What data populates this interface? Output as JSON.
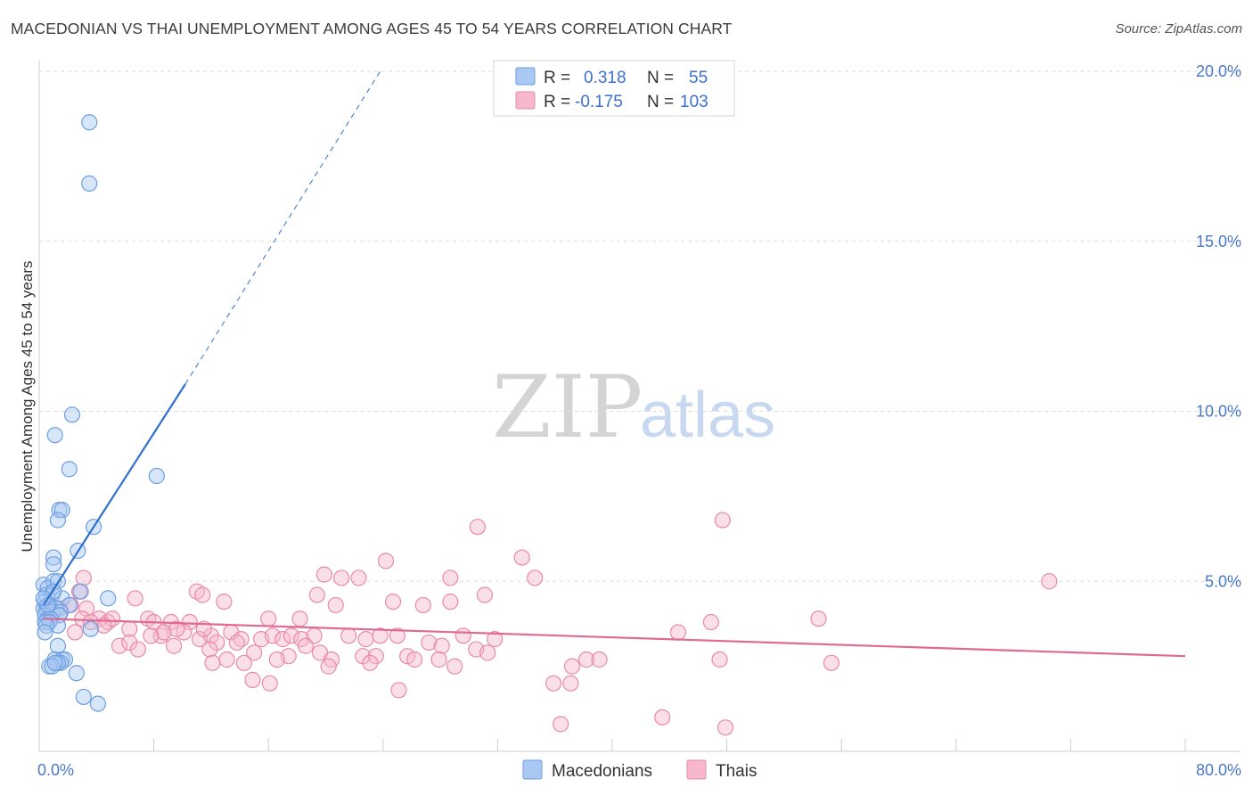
{
  "title": "MACEDONIAN VS THAI UNEMPLOYMENT AMONG AGES 45 TO 54 YEARS CORRELATION CHART",
  "source": "Source: ZipAtlas.com",
  "watermark": {
    "zip": "ZIP",
    "atlas": "atlas"
  },
  "colors": {
    "blue_fill": "#a9c8f2",
    "blue_stroke": "#6b9ee0",
    "blue_line": "#2f6fcf",
    "pink_fill": "#f7b8cc",
    "pink_stroke": "#e88aa8",
    "pink_line": "#e06a95",
    "grid": "#dddddd",
    "axis_label": "#4a78c8"
  },
  "legend": {
    "r_label": "R =",
    "n_label": "N =",
    "rows": [
      {
        "series": "Macedonians",
        "r": "0.318",
        "n": "55"
      },
      {
        "series": "Thais",
        "r": "-0.175",
        "n": "103"
      }
    ]
  },
  "bottom_legend": [
    "Macedonians",
    "Thais"
  ],
  "chart_data": {
    "type": "scatter",
    "title": "MACEDONIAN VS THAI UNEMPLOYMENT AMONG AGES 45 TO 54 YEARS CORRELATION CHART",
    "xlabel": "",
    "ylabel": "Unemployment Among Ages 45 to 54 years",
    "xlim": [
      0,
      80
    ],
    "ylim": [
      0,
      20
    ],
    "x_tick_labels": [
      "0.0%",
      "80.0%"
    ],
    "y_ticks": [
      5,
      10,
      15,
      20
    ],
    "y_tick_labels": [
      "5.0%",
      "10.0%",
      "15.0%",
      "20.0%"
    ],
    "grid": true,
    "series": [
      {
        "name": "Macedonians",
        "r": 0.318,
        "n": 55,
        "trend": {
          "x0": 0.3,
          "y0": 4.3,
          "x1": 10.2,
          "y1": 10.8,
          "dash_to_x": 23.8,
          "dash_to_y": 20.0
        },
        "points": [
          [
            3.5,
            18.5
          ],
          [
            3.5,
            16.7
          ],
          [
            2.3,
            9.9
          ],
          [
            1.1,
            9.3
          ],
          [
            2.1,
            8.3
          ],
          [
            8.2,
            8.1
          ],
          [
            1.4,
            7.1
          ],
          [
            1.6,
            7.1
          ],
          [
            1.3,
            6.8
          ],
          [
            3.8,
            6.6
          ],
          [
            2.7,
            5.9
          ],
          [
            1.0,
            5.7
          ],
          [
            1.0,
            5.5
          ],
          [
            0.3,
            4.9
          ],
          [
            0.6,
            4.8
          ],
          [
            1.0,
            5.0
          ],
          [
            1.3,
            5.0
          ],
          [
            2.9,
            4.7
          ],
          [
            4.8,
            4.5
          ],
          [
            0.5,
            4.6
          ],
          [
            0.9,
            4.6
          ],
          [
            1.6,
            4.5
          ],
          [
            2.1,
            4.3
          ],
          [
            0.4,
            4.4
          ],
          [
            0.7,
            4.3
          ],
          [
            1.2,
            4.2
          ],
          [
            0.3,
            4.2
          ],
          [
            0.5,
            4.2
          ],
          [
            0.9,
            4.1
          ],
          [
            1.5,
            4.1
          ],
          [
            0.4,
            4.0
          ],
          [
            1.4,
            4.0
          ],
          [
            0.6,
            3.9
          ],
          [
            0.8,
            3.9
          ],
          [
            0.4,
            3.8
          ],
          [
            0.7,
            3.8
          ],
          [
            1.3,
            3.7
          ],
          [
            0.5,
            3.7
          ],
          [
            0.4,
            3.5
          ],
          [
            3.6,
            3.6
          ],
          [
            1.3,
            3.1
          ],
          [
            1.1,
            2.7
          ],
          [
            1.6,
            2.7
          ],
          [
            1.8,
            2.7
          ],
          [
            1.5,
            2.6
          ],
          [
            1.3,
            2.6
          ],
          [
            0.7,
            2.5
          ],
          [
            0.9,
            2.5
          ],
          [
            2.6,
            2.3
          ],
          [
            3.1,
            1.6
          ],
          [
            4.1,
            1.4
          ],
          [
            0.6,
            4.3
          ],
          [
            1.0,
            4.7
          ],
          [
            0.3,
            4.5
          ],
          [
            1.1,
            2.6
          ]
        ]
      },
      {
        "name": "Thais",
        "r": -0.175,
        "n": 103,
        "trend": {
          "x0": 0.3,
          "y0": 3.9,
          "x1": 80.0,
          "y1": 2.8
        },
        "points": [
          [
            47.7,
            6.8
          ],
          [
            30.6,
            6.6
          ],
          [
            33.7,
            5.7
          ],
          [
            24.2,
            5.6
          ],
          [
            3.1,
            5.1
          ],
          [
            19.9,
            5.2
          ],
          [
            21.1,
            5.1
          ],
          [
            22.3,
            5.1
          ],
          [
            28.7,
            5.1
          ],
          [
            34.6,
            5.1
          ],
          [
            70.5,
            5.0
          ],
          [
            11.0,
            4.7
          ],
          [
            11.4,
            4.6
          ],
          [
            19.4,
            4.6
          ],
          [
            31.1,
            4.6
          ],
          [
            2.8,
            4.7
          ],
          [
            6.7,
            4.5
          ],
          [
            12.9,
            4.4
          ],
          [
            24.7,
            4.4
          ],
          [
            26.8,
            4.3
          ],
          [
            28.7,
            4.4
          ],
          [
            20.7,
            4.3
          ],
          [
            2.2,
            4.3
          ],
          [
            3.3,
            4.2
          ],
          [
            1.4,
            4.2
          ],
          [
            7.6,
            3.9
          ],
          [
            8.0,
            3.8
          ],
          [
            9.2,
            3.8
          ],
          [
            10.5,
            3.8
          ],
          [
            16.0,
            3.9
          ],
          [
            18.2,
            3.9
          ],
          [
            4.2,
            3.9
          ],
          [
            4.8,
            3.8
          ],
          [
            5.1,
            3.9
          ],
          [
            4.5,
            3.7
          ],
          [
            3.0,
            3.9
          ],
          [
            2.5,
            3.5
          ],
          [
            6.3,
            3.6
          ],
          [
            8.5,
            3.4
          ],
          [
            8.7,
            3.5
          ],
          [
            10.1,
            3.5
          ],
          [
            11.2,
            3.3
          ],
          [
            12.0,
            3.4
          ],
          [
            12.4,
            3.2
          ],
          [
            13.4,
            3.5
          ],
          [
            14.1,
            3.3
          ],
          [
            15.5,
            3.3
          ],
          [
            16.3,
            3.4
          ],
          [
            17.0,
            3.3
          ],
          [
            17.6,
            3.4
          ],
          [
            18.3,
            3.3
          ],
          [
            19.2,
            3.4
          ],
          [
            21.6,
            3.4
          ],
          [
            22.8,
            3.3
          ],
          [
            23.8,
            3.4
          ],
          [
            25.0,
            3.4
          ],
          [
            27.2,
            3.2
          ],
          [
            29.6,
            3.4
          ],
          [
            31.8,
            3.3
          ],
          [
            5.6,
            3.1
          ],
          [
            9.4,
            3.1
          ],
          [
            11.9,
            3.0
          ],
          [
            13.8,
            3.2
          ],
          [
            15.0,
            2.9
          ],
          [
            17.4,
            2.8
          ],
          [
            19.6,
            2.9
          ],
          [
            20.4,
            2.7
          ],
          [
            22.6,
            2.8
          ],
          [
            23.5,
            2.8
          ],
          [
            25.7,
            2.8
          ],
          [
            28.1,
            3.1
          ],
          [
            30.5,
            3.0
          ],
          [
            31.3,
            2.9
          ],
          [
            12.1,
            2.6
          ],
          [
            13.1,
            2.7
          ],
          [
            14.3,
            2.6
          ],
          [
            16.6,
            2.7
          ],
          [
            20.2,
            2.5
          ],
          [
            23.1,
            2.6
          ],
          [
            26.2,
            2.7
          ],
          [
            27.9,
            2.7
          ],
          [
            29.0,
            2.5
          ],
          [
            37.2,
            2.5
          ],
          [
            38.2,
            2.7
          ],
          [
            39.1,
            2.7
          ],
          [
            6.3,
            3.2
          ],
          [
            7.8,
            3.4
          ],
          [
            9.6,
            3.6
          ],
          [
            11.5,
            3.6
          ],
          [
            35.9,
            2.0
          ],
          [
            37.1,
            2.0
          ],
          [
            14.9,
            2.1
          ],
          [
            16.1,
            2.0
          ],
          [
            25.1,
            1.8
          ],
          [
            36.4,
            0.8
          ],
          [
            43.5,
            1.0
          ],
          [
            47.9,
            0.7
          ],
          [
            44.6,
            3.5
          ],
          [
            46.9,
            3.8
          ],
          [
            47.5,
            2.7
          ],
          [
            54.4,
            3.9
          ],
          [
            55.3,
            2.6
          ],
          [
            6.9,
            3.0
          ],
          [
            3.6,
            3.8
          ],
          [
            18.6,
            3.1
          ]
        ]
      }
    ]
  }
}
